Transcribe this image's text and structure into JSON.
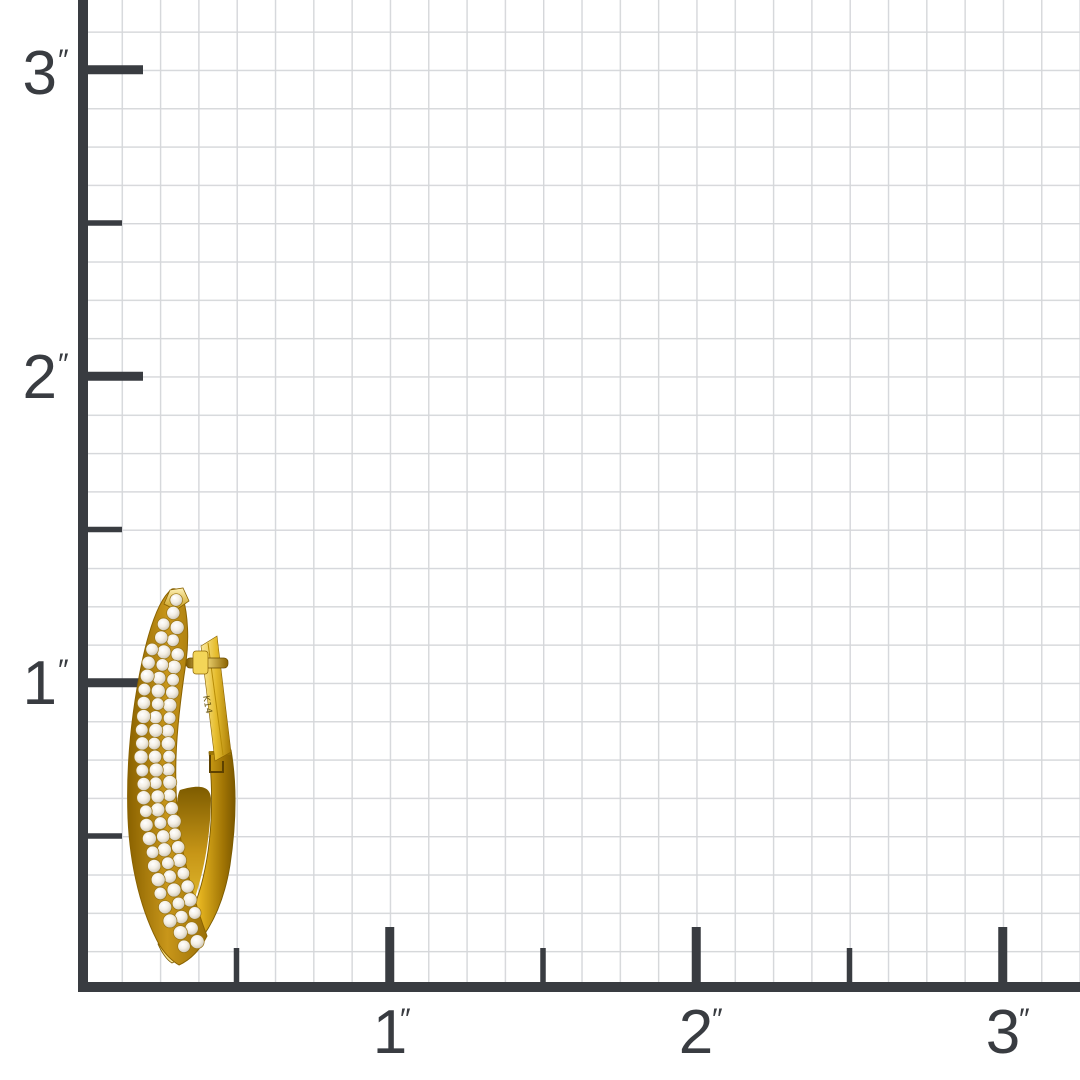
{
  "scene": {
    "background": "#ffffff",
    "description_labels_visible": [
      "3″",
      "2″",
      "1″",
      "1″",
      "2″",
      "3″",
      "K14"
    ]
  },
  "ruler": {
    "unit_symbol": "″",
    "left_labels": [
      "3",
      "2",
      "1"
    ],
    "bottom_labels": [
      "1",
      "2",
      "3"
    ],
    "minor_squares_per_inch": 8
  },
  "colors": {
    "axis": "#393c41",
    "grid": "#d5d7da",
    "gold-base": "#bb8a10",
    "gold-bright": "#f6d55e",
    "gold-deep": "#7c5800",
    "diamond": "#f1ece2",
    "stamp": "#6e5a14"
  },
  "earring": {
    "stamp": "K14",
    "pave_rows": 27,
    "pave_max_columns": 3,
    "stone_radius": 6.3,
    "stone_spacing": 13.2
  }
}
